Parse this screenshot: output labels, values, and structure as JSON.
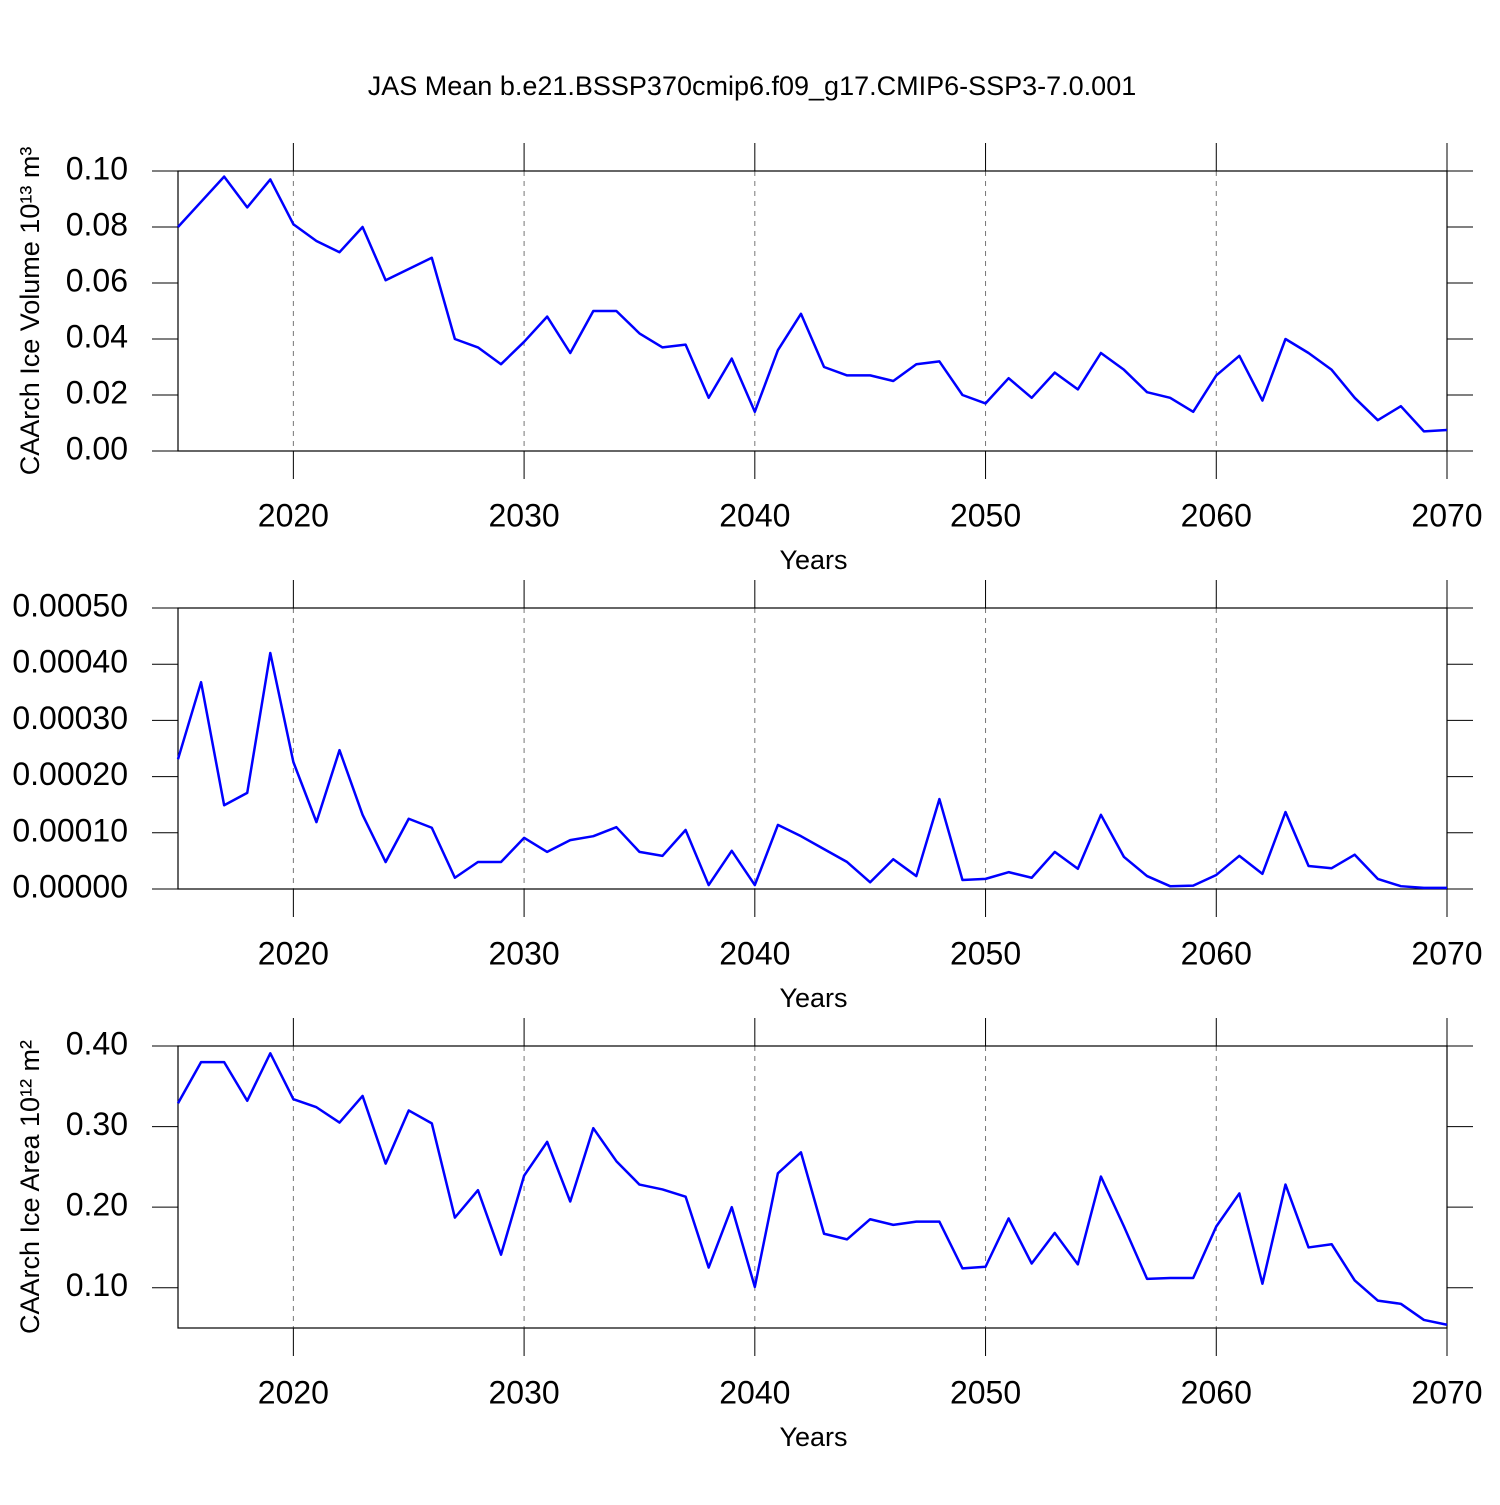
{
  "title": "JAS Mean b.e21.BSSP370cmip6.f09_g17.CMIP6-SSP3-7.0.001",
  "chart_data": [
    {
      "type": "line",
      "ylabel": "CAArch Ice Volume 10¹³ m³",
      "xlabel": "Years",
      "x": [
        2015,
        2016,
        2017,
        2018,
        2019,
        2020,
        2021,
        2022,
        2023,
        2024,
        2025,
        2026,
        2027,
        2028,
        2029,
        2030,
        2031,
        2032,
        2033,
        2034,
        2035,
        2036,
        2037,
        2038,
        2039,
        2040,
        2041,
        2042,
        2043,
        2044,
        2045,
        2046,
        2047,
        2048,
        2049,
        2050,
        2051,
        2052,
        2053,
        2054,
        2055,
        2056,
        2057,
        2058,
        2059,
        2060,
        2061,
        2062,
        2063,
        2064,
        2065,
        2066,
        2067,
        2068,
        2069,
        2070
      ],
      "series": [
        {
          "color": "#0000ff",
          "values": [
            0.08,
            0.089,
            0.098,
            0.087,
            0.097,
            0.081,
            0.075,
            0.071,
            0.08,
            0.061,
            0.065,
            0.069,
            0.04,
            0.037,
            0.031,
            0.039,
            0.048,
            0.035,
            0.05,
            0.05,
            0.042,
            0.037,
            0.038,
            0.019,
            0.033,
            0.014,
            0.036,
            0.049,
            0.03,
            0.027,
            0.027,
            0.025,
            0.031,
            0.032,
            0.02,
            0.017,
            0.026,
            0.019,
            0.028,
            0.022,
            0.035,
            0.029,
            0.021,
            0.019,
            0.014,
            0.027,
            0.034,
            0.018,
            0.04,
            0.035,
            0.029,
            0.019,
            0.011,
            0.016,
            0.007,
            0.0075
          ]
        }
      ],
      "xlim": [
        2015,
        2070
      ],
      "xticks": [
        2020,
        2030,
        2040,
        2050,
        2060,
        2070
      ],
      "ylim": [
        0,
        0.1
      ],
      "yticks": [
        {
          "value": 0,
          "label": "0.00"
        },
        {
          "value": 0.02,
          "label": "0.02"
        },
        {
          "value": 0.04,
          "label": "0.04"
        },
        {
          "value": 0.06,
          "label": "0.06"
        },
        {
          "value": 0.08,
          "label": "0.08"
        },
        {
          "value": 0.1,
          "label": "0.10"
        }
      ],
      "grid": true
    },
    {
      "type": "line",
      "xlabel": "Years",
      "x": [
        2015,
        2016,
        2017,
        2018,
        2019,
        2020,
        2021,
        2022,
        2023,
        2024,
        2025,
        2026,
        2027,
        2028,
        2029,
        2030,
        2031,
        2032,
        2033,
        2034,
        2035,
        2036,
        2037,
        2038,
        2039,
        2040,
        2041,
        2042,
        2043,
        2044,
        2045,
        2046,
        2047,
        2048,
        2049,
        2050,
        2051,
        2052,
        2053,
        2054,
        2055,
        2056,
        2057,
        2058,
        2059,
        2060,
        2061,
        2062,
        2063,
        2064,
        2065,
        2066,
        2067,
        2068,
        2069,
        2070
      ],
      "series": [
        {
          "color": "#0000ff",
          "values": [
            0.000231,
            0.000368,
            0.000149,
            0.000171,
            0.00042,
            0.000226,
            0.000119,
            0.000247,
            0.000132,
            4.8e-05,
            0.000125,
            0.000109,
            2e-05,
            4.8e-05,
            4.8e-05,
            9.1e-05,
            6.6e-05,
            8.7e-05,
            9.4e-05,
            0.00011,
            6.6e-05,
            5.9e-05,
            0.000105,
            7e-06,
            6.8e-05,
            7e-06,
            0.000114,
            9.4e-05,
            7.1e-05,
            4.8e-05,
            1.2e-05,
            5.3e-05,
            2.3e-05,
            0.00016,
            1.6e-05,
            1.8e-05,
            3e-05,
            2e-05,
            6.6e-05,
            3.6e-05,
            0.000132,
            5.7e-05,
            2.3e-05,
            5e-06,
            6e-06,
            2.5e-05,
            5.9e-05,
            2.7e-05,
            0.000137,
            4.1e-05,
            3.7e-05,
            6.1e-05,
            1.8e-05,
            5e-06,
            2e-06,
            2e-06
          ]
        }
      ],
      "xlim": [
        2015,
        2070
      ],
      "xticks": [
        2020,
        2030,
        2040,
        2050,
        2060,
        2070
      ],
      "ylim": [
        0,
        0.0005
      ],
      "yticks": [
        {
          "value": 0,
          "label": "0.00000"
        },
        {
          "value": 0.0001,
          "label": "0.00010"
        },
        {
          "value": 0.0002,
          "label": "0.00020"
        },
        {
          "value": 0.0003,
          "label": "0.00030"
        },
        {
          "value": 0.0004,
          "label": "0.00040"
        },
        {
          "value": 0.0005,
          "label": "0.00050"
        }
      ],
      "grid": true
    },
    {
      "type": "line",
      "ylabel": "CAArch Ice Area 10¹² m²",
      "xlabel": "Years",
      "x": [
        2015,
        2016,
        2017,
        2018,
        2019,
        2020,
        2021,
        2022,
        2023,
        2024,
        2025,
        2026,
        2027,
        2028,
        2029,
        2030,
        2031,
        2032,
        2033,
        2034,
        2035,
        2036,
        2037,
        2038,
        2039,
        2040,
        2041,
        2042,
        2043,
        2044,
        2045,
        2046,
        2047,
        2048,
        2049,
        2050,
        2051,
        2052,
        2053,
        2054,
        2055,
        2056,
        2057,
        2058,
        2059,
        2060,
        2061,
        2062,
        2063,
        2064,
        2065,
        2066,
        2067,
        2068,
        2069,
        2070
      ],
      "series": [
        {
          "color": "#0000ff",
          "values": [
            0.329,
            0.38,
            0.38,
            0.332,
            0.391,
            0.334,
            0.324,
            0.305,
            0.338,
            0.254,
            0.32,
            0.304,
            0.187,
            0.221,
            0.141,
            0.239,
            0.281,
            0.207,
            0.298,
            0.257,
            0.228,
            0.222,
            0.213,
            0.125,
            0.2,
            0.101,
            0.242,
            0.268,
            0.167,
            0.16,
            0.185,
            0.178,
            0.182,
            0.182,
            0.124,
            0.126,
            0.186,
            0.13,
            0.168,
            0.129,
            0.238,
            0.176,
            0.111,
            0.112,
            0.112,
            0.176,
            0.217,
            0.105,
            0.228,
            0.15,
            0.154,
            0.109,
            0.084,
            0.08,
            0.06,
            0.054
          ]
        }
      ],
      "xlim": [
        2015,
        2070
      ],
      "xticks": [
        2020,
        2030,
        2040,
        2050,
        2060,
        2070
      ],
      "ylim": [
        0.05,
        0.4
      ],
      "yticks": [
        {
          "value": 0.1,
          "label": "0.10"
        },
        {
          "value": 0.2,
          "label": "0.20"
        },
        {
          "value": 0.3,
          "label": "0.30"
        },
        {
          "value": 0.4,
          "label": "0.40"
        }
      ],
      "grid": true
    }
  ]
}
